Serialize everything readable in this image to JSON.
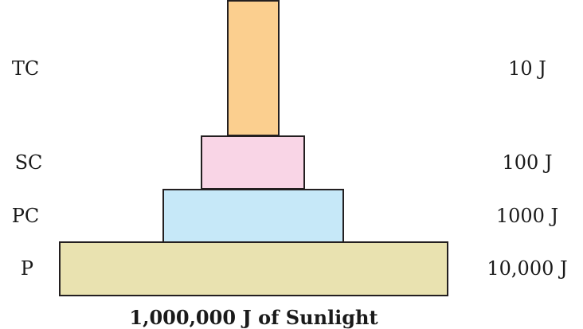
{
  "pyramid": {
    "levels": [
      {
        "code": "TC",
        "energy": "10 J",
        "color": "#fbcf8f"
      },
      {
        "code": "SC",
        "energy": "100 J",
        "color": "#f9d5e6"
      },
      {
        "code": "PC",
        "energy": "1000 J",
        "color": "#c6e8f8"
      },
      {
        "code": "P",
        "energy": "10,000 J",
        "color": "#e9e2b0"
      }
    ],
    "border_color": "#231f20",
    "base_caption": "1,000,000 J of Sunlight"
  }
}
